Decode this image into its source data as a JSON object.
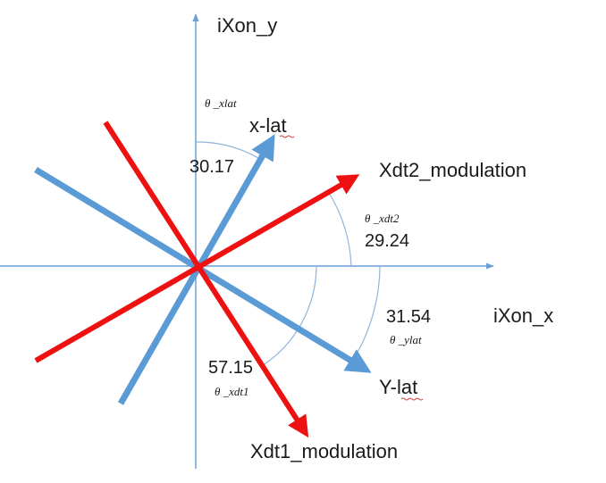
{
  "axes": {
    "x_label": "iXon_x",
    "y_label": "iXon_y",
    "color": "#6c9fd6"
  },
  "lines": {
    "x_lat": {
      "label": "x-lat",
      "color": "#5b9bd5"
    },
    "y_lat": {
      "label": "Y-lat",
      "color": "#5b9bd5"
    },
    "xdt1": {
      "label": "Xdt1_modulation",
      "color": "#ee1111"
    },
    "xdt2": {
      "label": "Xdt2_modulation",
      "color": "#ee1111"
    }
  },
  "angles": {
    "theta_xlat": {
      "symbol": "θ _xlat",
      "value": "30.17"
    },
    "theta_xdt2": {
      "symbol": "θ _xdt2",
      "value": "29.24"
    },
    "theta_ylat": {
      "symbol": "θ _ylat",
      "value": "31.54"
    },
    "theta_xdt1": {
      "symbol": "θ _xdt1",
      "value": "57.15"
    }
  }
}
